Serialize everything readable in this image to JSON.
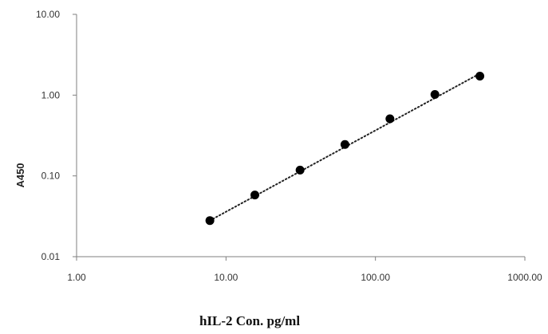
{
  "chart_data": {
    "type": "scatter",
    "xlabel": "hIL-2 Con. pg/ml",
    "ylabel": "A450",
    "xscale": "log",
    "yscale": "log",
    "xlim": [
      1,
      1000
    ],
    "ylim": [
      0.01,
      10
    ],
    "x_ticks": [
      "1.00",
      "10.00",
      "100.00",
      "1000.00"
    ],
    "y_ticks": [
      "0.01",
      "0.10",
      "1.00",
      "10.00"
    ],
    "grid": false,
    "series": [
      {
        "x": [
          7.8,
          15.6,
          31.3,
          62.5,
          125,
          250,
          500
        ],
        "y": [
          0.028,
          0.058,
          0.118,
          0.245,
          0.51,
          1.02,
          1.72
        ]
      }
    ],
    "trendline": {
      "style": "dotted",
      "x": [
        7.8,
        500
      ],
      "y": [
        0.028,
        1.85
      ]
    },
    "marker_color": "#000000"
  }
}
